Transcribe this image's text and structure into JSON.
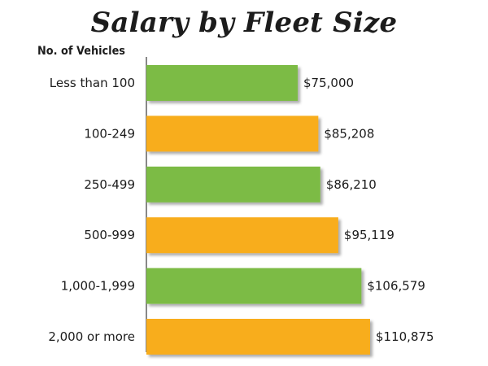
{
  "colors": {
    "green": "#7cbb44",
    "orange": "#f8ad1f",
    "axis": "#3a3a3a"
  },
  "chart_data": {
    "type": "bar",
    "orientation": "horizontal",
    "title": "Salary by Fleet Size",
    "ylabel": "No. of Vehicles",
    "categories": [
      "Less than 100",
      "100-249",
      "250-499",
      "500-999",
      "1,000-1,999",
      "2,000 or more"
    ],
    "values": [
      75000,
      85208,
      86210,
      95119,
      106579,
      110875
    ],
    "value_labels": [
      "$75,000",
      "$85,208",
      "$86,210",
      "$95,119",
      "$106,579",
      "$110,875"
    ],
    "bar_colors": [
      "green",
      "orange",
      "green",
      "orange",
      "green",
      "orange"
    ],
    "xlim": [
      0,
      110875
    ]
  }
}
